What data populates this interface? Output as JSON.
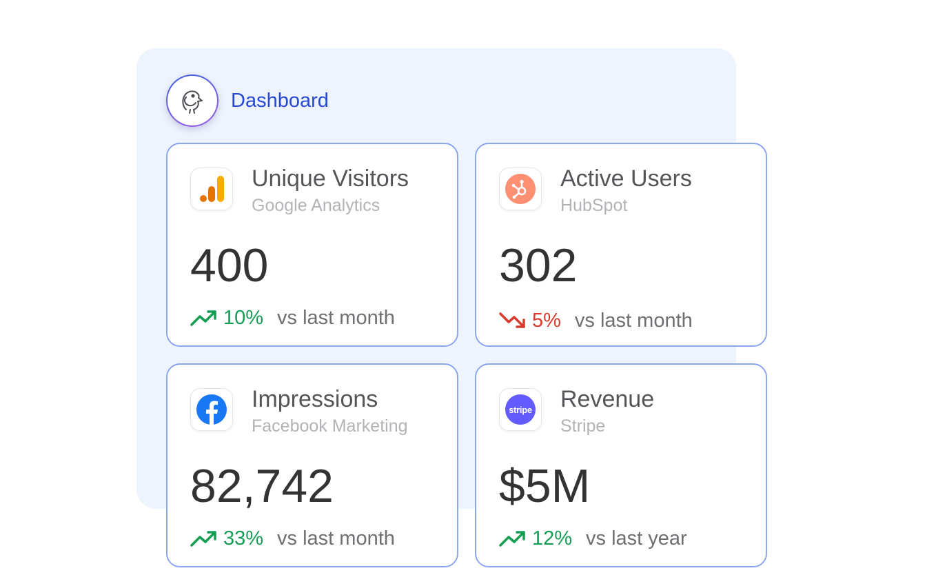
{
  "header": {
    "title": "Dashboard",
    "logo_icon": "bird-logo-icon"
  },
  "colors": {
    "accent": "#2749d6",
    "up": "#169d54",
    "down": "#d83a2c",
    "card_border": "#8aa6ef"
  },
  "cards": [
    {
      "name": "Unique Visitors",
      "source": "Google Analytics",
      "value": "400",
      "change": "10%",
      "direction": "up",
      "comparison": "vs last month",
      "icon": "google-analytics-icon"
    },
    {
      "name": "Active Users",
      "source": "HubSpot",
      "value": "302",
      "change": "5%",
      "direction": "down",
      "comparison": "vs last month",
      "icon": "hubspot-icon"
    },
    {
      "name": "Impressions",
      "source": "Facebook Marketing",
      "value": "82,742",
      "change": "33%",
      "direction": "up",
      "comparison": "vs last month",
      "icon": "facebook-icon"
    },
    {
      "name": "Revenue",
      "source": "Stripe",
      "value": "$5M",
      "change": "12%",
      "direction": "up",
      "comparison": "vs last year",
      "icon": "stripe-icon",
      "icon_text": "stripe"
    }
  ]
}
